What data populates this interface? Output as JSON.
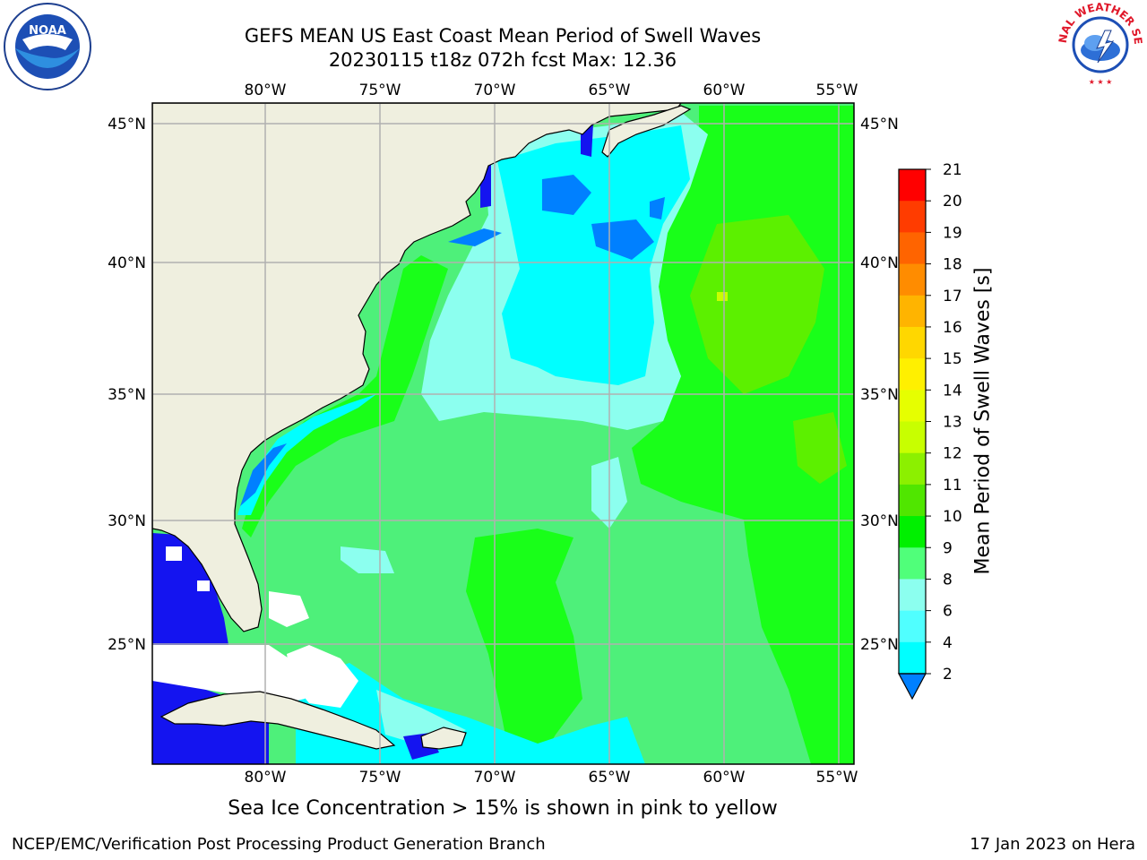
{
  "title": {
    "line1": "GEFS MEAN US East Coast Mean Period of Swell Waves",
    "line2": "20230115 t18z 072h fcst   Max: 12.36"
  },
  "map": {
    "lon_labels": [
      "80°W",
      "75°W",
      "70°W",
      "65°W",
      "60°W",
      "55°W"
    ],
    "lat_labels": [
      "45°N",
      "40°N",
      "35°N",
      "30°N",
      "25°N"
    ],
    "colors": {
      "land": "#efefdf",
      "grid": "#b0b0b0",
      "ocean_main": "#4ef07a",
      "ocean_coastal": "#19ff19",
      "ocean_cyan_light": "#8cffef",
      "ocean_cyan": "#00ffff",
      "ocean_blue": "#0080ff",
      "ocean_darkblue": "#1414f0",
      "yellowgreen": "#5cf000",
      "missing": "#ffffff"
    }
  },
  "colorbar": {
    "label": "Mean Period of Swell Waves [s]",
    "ticks": [
      "21",
      "20",
      "19",
      "18",
      "17",
      "16",
      "15",
      "14",
      "13",
      "12",
      "11",
      "10",
      "9",
      "8",
      "6",
      "4",
      "2"
    ],
    "colors": [
      "#ff0000",
      "#ff3c00",
      "#ff6400",
      "#ff8c00",
      "#ffb400",
      "#ffd700",
      "#fff000",
      "#e6ff00",
      "#c8ff00",
      "#8cf000",
      "#50e600",
      "#00f000",
      "#50ff7a",
      "#8cffef",
      "#50ffff",
      "#00ffff",
      "#0080ff",
      "#0000ff"
    ]
  },
  "logos": {
    "left": "noaa-logo",
    "right": "national-weather-service-logo",
    "right_text": "NATIONAL WEATHER SERVICE"
  },
  "footnote": "Sea Ice Concentration > 15% is shown in pink to yellow",
  "credit_left": "NCEP/EMC/Verification Post Processing Product Generation Branch",
  "credit_right": "17 Jan 2023 on Hera"
}
